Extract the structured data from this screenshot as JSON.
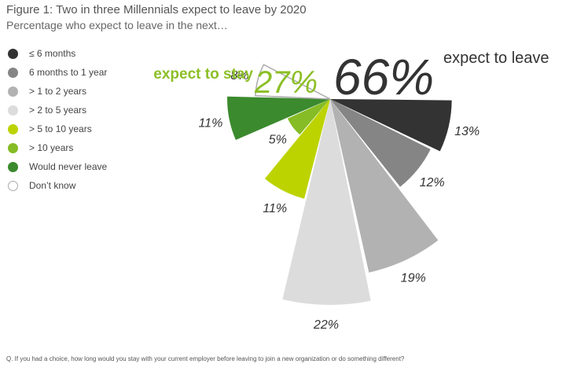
{
  "title": "Figure 1: Two in three Millennials expect to leave by 2020",
  "subtitle": "Percentage who expect to leave in the next…",
  "footnote": "Q. If you had a choice, how long would you stay with your current employer before leaving to join a new organization or do something different?",
  "colors": {
    "months6": "#333333",
    "months6to1y": "#858585",
    "years1to2": "#b2b2b2",
    "years2to5": "#dcdcdc",
    "years5to10": "#bcd300",
    "years10plus": "#86bc25",
    "never": "#3b8a2e",
    "dontknow": "#ffffff",
    "stay_text": "#8cbf26",
    "leave_text": "#333333"
  },
  "chart_data": {
    "type": "pie",
    "variant": "polar-area",
    "title": "Two in three Millennials expect to leave by 2020",
    "summary": {
      "stay": {
        "label": "expect to stay",
        "value": "27%"
      },
      "leave": {
        "value": "66%",
        "label": "expect to leave"
      }
    },
    "segments": [
      {
        "label": "≤ 6 months",
        "value": 13,
        "display": "13%",
        "color": "#333333"
      },
      {
        "label": "6 months to 1 year",
        "value": 12,
        "display": "12%",
        "color": "#858585"
      },
      {
        "label": "> 1 to 2 years",
        "value": 19,
        "display": "19%",
        "color": "#b2b2b2"
      },
      {
        "label": "> 2 to 5 years",
        "value": 22,
        "display": "22%",
        "color": "#dcdcdc"
      },
      {
        "label": "> 5 to 10 years",
        "value": 11,
        "display": "11%",
        "color": "#bcd300"
      },
      {
        "label": "> 10 years",
        "value": 5,
        "display": "5%",
        "color": "#86bc25"
      },
      {
        "label": "Would never leave",
        "value": 11,
        "display": "11%",
        "color": "#3b8a2e"
      },
      {
        "label": "Don’t know",
        "value": 8,
        "display": "8%",
        "color": "#ffffff"
      }
    ]
  }
}
